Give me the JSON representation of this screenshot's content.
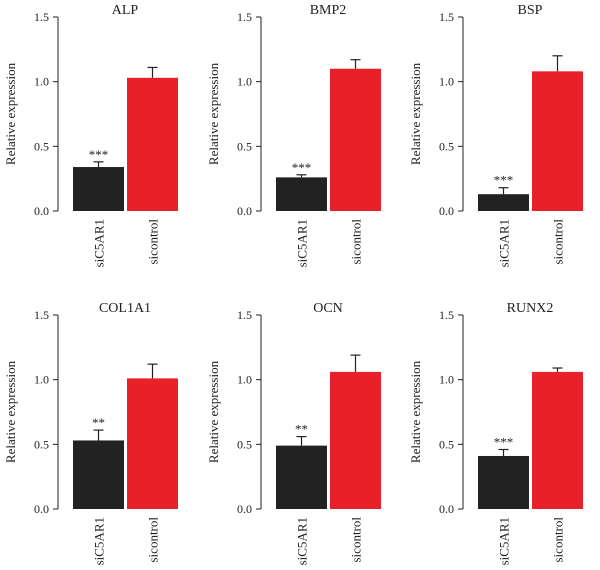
{
  "colors": {
    "siC5AR1": "#222222",
    "sicontrol": "#e8202a"
  },
  "chart_data": [
    {
      "type": "bar",
      "title": "ALP",
      "ylabel": "Relative expression",
      "categories": [
        "siC5AR1",
        "sicontrol"
      ],
      "values": [
        0.34,
        1.03
      ],
      "errors": [
        0.04,
        0.08
      ],
      "annotations": [
        "***",
        ""
      ],
      "ylim": [
        0,
        1.5
      ],
      "yticks": [
        "0.0",
        "0.5",
        "1.0",
        "1.5"
      ]
    },
    {
      "type": "bar",
      "title": "BMP2",
      "ylabel": "Relative expression",
      "categories": [
        "siC5AR1",
        "sicontrol"
      ],
      "values": [
        0.26,
        1.1
      ],
      "errors": [
        0.02,
        0.07
      ],
      "annotations": [
        "***",
        ""
      ],
      "ylim": [
        0,
        1.5
      ],
      "yticks": [
        "0.0",
        "0.5",
        "1.0",
        "1.5"
      ]
    },
    {
      "type": "bar",
      "title": "BSP",
      "ylabel": "Relative expression",
      "categories": [
        "siC5AR1",
        "sicontrol"
      ],
      "values": [
        0.13,
        1.08
      ],
      "errors": [
        0.05,
        0.12
      ],
      "annotations": [
        "***",
        ""
      ],
      "ylim": [
        0,
        1.5
      ],
      "yticks": [
        "0.0",
        "0.5",
        "1.0",
        "1.5"
      ]
    },
    {
      "type": "bar",
      "title": "COL1A1",
      "ylabel": "Relative expression",
      "categories": [
        "siC5AR1",
        "sicontrol"
      ],
      "values": [
        0.53,
        1.01
      ],
      "errors": [
        0.08,
        0.11
      ],
      "annotations": [
        "**",
        ""
      ],
      "ylim": [
        0,
        1.5
      ],
      "yticks": [
        "0.0",
        "0.5",
        "1.0",
        "1.5"
      ]
    },
    {
      "type": "bar",
      "title": "OCN",
      "ylabel": "Relative expression",
      "categories": [
        "siC5AR1",
        "sicontrol"
      ],
      "values": [
        0.49,
        1.06
      ],
      "errors": [
        0.07,
        0.13
      ],
      "annotations": [
        "**",
        ""
      ],
      "ylim": [
        0,
        1.5
      ],
      "yticks": [
        "0.0",
        "0.5",
        "1.0",
        "1.5"
      ]
    },
    {
      "type": "bar",
      "title": "RUNX2",
      "ylabel": "Relative expression",
      "categories": [
        "siC5AR1",
        "sicontrol"
      ],
      "values": [
        0.41,
        1.06
      ],
      "errors": [
        0.05,
        0.03
      ],
      "annotations": [
        "***",
        ""
      ],
      "ylim": [
        0,
        1.5
      ],
      "yticks": [
        "0.0",
        "0.5",
        "1.0",
        "1.5"
      ]
    }
  ]
}
